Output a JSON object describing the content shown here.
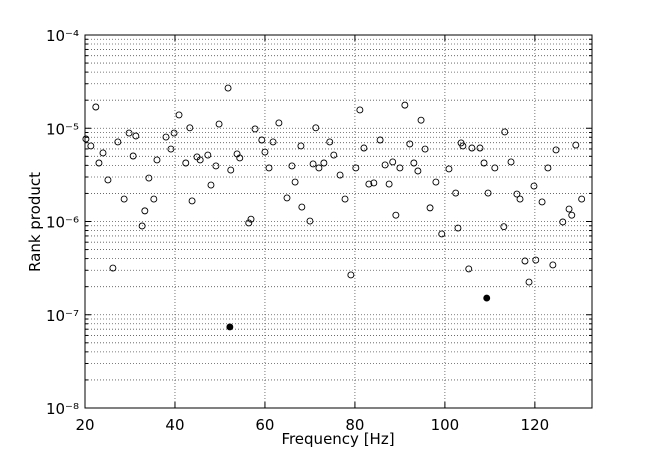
{
  "chart_data": {
    "type": "scatter",
    "xlabel": "Frequency [Hz]",
    "ylabel": "Rank product",
    "xlim": [
      20,
      132.7
    ],
    "xticks": [
      20,
      40,
      60,
      80,
      100,
      120
    ],
    "ylim": [
      1e-08,
      0.0001
    ],
    "log_y": true,
    "grid": true,
    "yticks": [
      {
        "value": 1e-08,
        "label": "10⁻⁸"
      },
      {
        "value": 1e-07,
        "label": "10⁻⁷"
      },
      {
        "value": 1e-06,
        "label": "10⁻⁶"
      },
      {
        "value": 1e-05,
        "label": "10⁻⁵"
      },
      {
        "value": 0.0001,
        "label": "10⁻⁴"
      }
    ],
    "series": [
      {
        "marker": "open",
        "color": "#000000",
        "x": [
          20.2,
          21.3,
          22.4,
          23.1,
          24.0,
          25.1,
          26.2,
          27.3,
          28.7,
          29.8,
          30.7,
          31.3,
          32.7,
          33.3,
          34.2,
          35.3,
          36.0,
          38.0,
          39.1,
          39.8,
          40.9,
          42.4,
          43.3,
          43.8,
          44.9,
          45.6,
          47.3,
          48.0,
          49.1,
          49.8,
          51.8,
          52.4,
          53.8,
          54.4,
          56.4,
          56.9,
          57.8,
          59.3,
          60.0,
          60.9,
          61.8,
          63.1,
          64.9,
          66.0,
          66.7,
          68.0,
          68.2,
          70.0,
          70.7,
          71.3,
          72.0,
          73.1,
          74.4,
          75.3,
          76.7,
          77.8,
          79.1,
          80.2,
          81.1,
          82.0,
          83.1,
          84.2,
          85.6,
          86.7,
          87.6,
          88.4,
          89.1,
          90.0,
          91.1,
          92.2,
          93.1,
          94.0,
          94.7,
          95.6,
          96.7,
          98.0,
          99.3,
          100.9,
          102.4,
          102.9,
          103.6,
          104.0,
          105.3,
          106.0,
          107.8,
          108.7,
          109.6,
          111.1,
          113.1,
          113.3,
          114.7,
          116.0,
          116.7,
          117.8,
          118.7,
          119.8,
          120.2,
          121.6,
          122.9,
          124.0,
          124.7,
          126.2,
          127.6,
          128.2,
          129.1,
          130.4
        ],
        "values": [
          7.67e-06,
          6.46e-06,
          1.69e-05,
          4.24e-06,
          5.43e-06,
          2.79e-06,
          3.17e-07,
          7.13e-06,
          1.74e-06,
          8.89e-06,
          5.04e-06,
          8.26e-06,
          8.95e-07,
          1.3e-06,
          2.92e-06,
          1.74e-06,
          4.57e-06,
          8.05e-06,
          5.98e-06,
          8.89e-06,
          1.39e-05,
          4.24e-06,
          1.01e-05,
          1.66e-06,
          4.92e-06,
          4.57e-06,
          5.16e-06,
          2.46e-06,
          3.94e-06,
          1.11e-05,
          2.7e-05,
          3.56e-06,
          5.3e-06,
          4.8e-06,
          9.64e-07,
          1.06e-06,
          9.82e-06,
          7.48e-06,
          5.56e-06,
          3.75e-06,
          7.13e-06,
          1.14e-05,
          1.79e-06,
          3.94e-06,
          2.65e-06,
          6.46e-06,
          1.43e-06,
          1.01e-06,
          4.14e-06,
          1.01e-05,
          3.75e-06,
          4.24e-06,
          7.13e-06,
          5.16e-06,
          3.15e-06,
          1.74e-06,
          2.67e-07,
          3.75e-06,
          1.57e-05,
          6.14e-06,
          2.52e-06,
          2.59e-06,
          7.48e-06,
          4.04e-06,
          2.52e-06,
          4.35e-06,
          1.17e-06,
          3.75e-06,
          1.77e-05,
          6.78e-06,
          4.24e-06,
          3.48e-06,
          1.22e-05,
          5.98e-06,
          1.4e-06,
          2.65e-06,
          7.35e-07,
          3.66e-06,
          2.02e-06,
          8.51e-07,
          6.95e-06,
          6.46e-06,
          3.1e-07,
          6.14e-06,
          6.14e-06,
          4.24e-06,
          2.02e-06,
          3.75e-06,
          8.8e-07,
          9.12e-06,
          4.35e-06,
          1.97e-06,
          1.74e-06,
          3.77e-07,
          2.24e-07,
          2.4e-06,
          3.86e-07,
          1.62e-06,
          3.75e-06,
          3.42e-07,
          5.85e-06,
          9.88e-07,
          1.36e-06,
          1.17e-06,
          6.61e-06,
          1.74e-06
        ]
      },
      {
        "marker": "filled",
        "color": "#000000",
        "x": [
          52.2,
          109.3
        ],
        "values": [
          7.4e-08,
          1.51e-07
        ]
      }
    ]
  }
}
